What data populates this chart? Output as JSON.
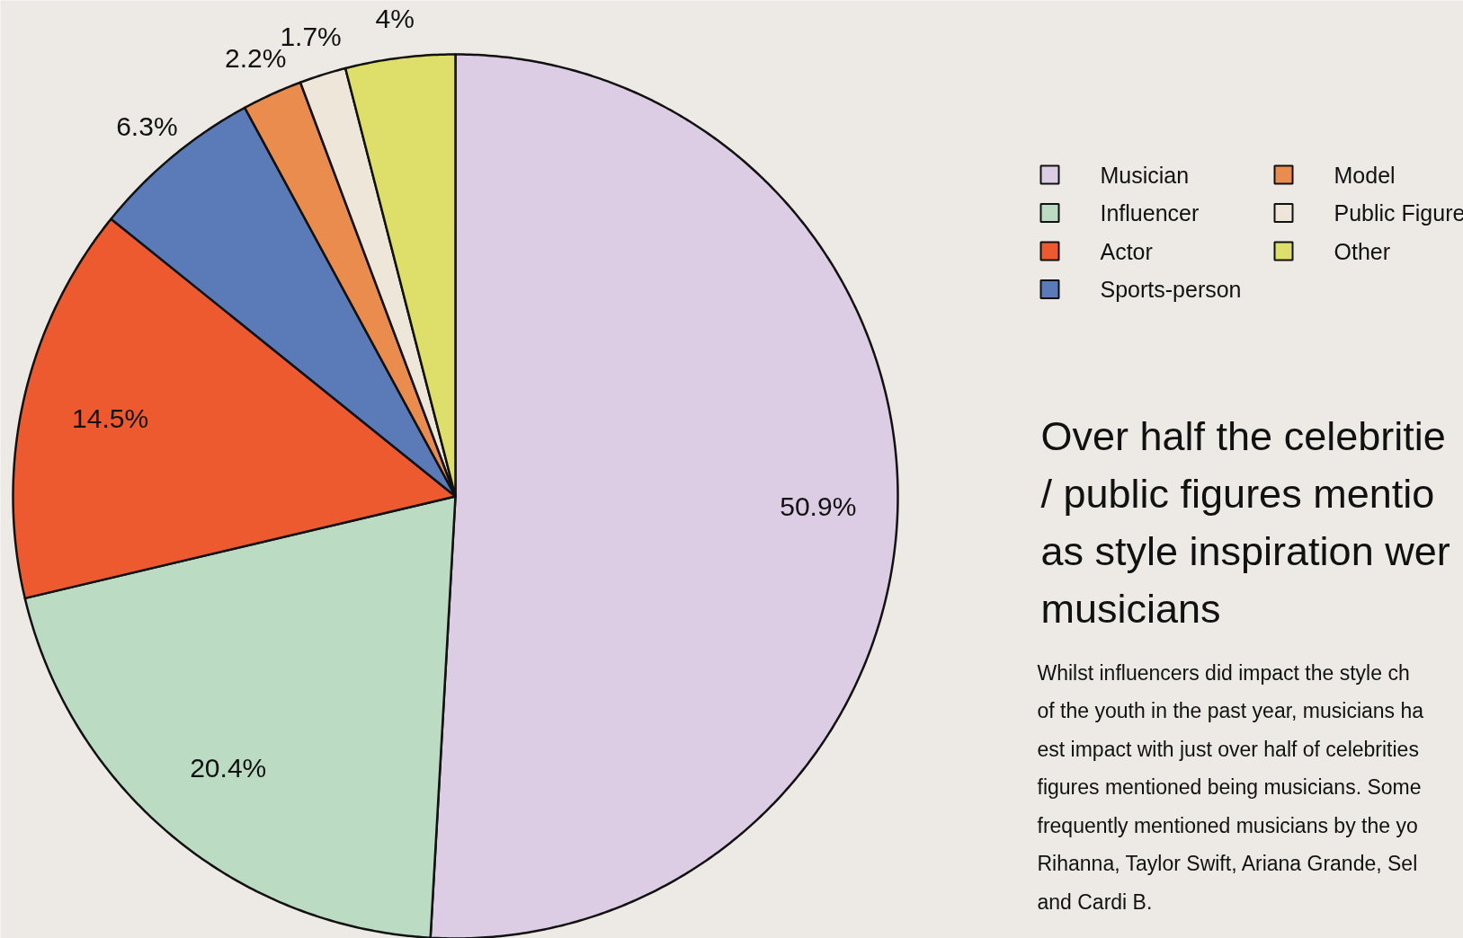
{
  "chart_data": {
    "type": "pie",
    "title": "Over half the celebritie\n/ public figures mentio\nas style inspiration wer\nmusicians",
    "categories": [
      "Musician",
      "Influencer",
      "Actor",
      "Sports-person",
      "Model",
      "Public Figure",
      "Other"
    ],
    "values": [
      50.9,
      20.4,
      14.5,
      6.3,
      2.2,
      1.7,
      4
    ],
    "colors": [
      "#dccce4",
      "#bcdbc3",
      "#ee5a2f",
      "#5b7bb8",
      "#eb8c4f",
      "#ede6d9",
      "#dede6a"
    ],
    "value_labels": [
      "50.9%",
      "20.4%",
      "14.5%",
      "6.3%",
      "2.2%",
      "1.7%",
      "4%"
    ],
    "legend": "right",
    "annotations": [
      "Whilst influencers did impact the style ch\nof the youth in the past year, musicians ha\nest impact with just over half of celebrities\nfigures mentioned being musicians. Some\nfrequently mentioned musicians by the yo\nRihanna, Taylor Swift, Ariana Grande, Sel\nand Cardi B."
    ]
  }
}
